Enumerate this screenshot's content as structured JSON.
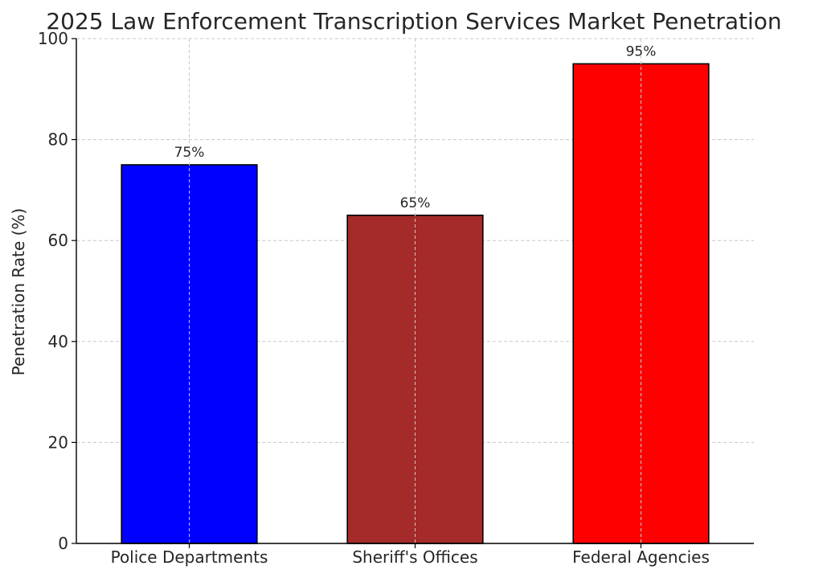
{
  "chart_data": {
    "type": "bar",
    "title": "2025 Law Enforcement Transcription Services Market Penetration",
    "xlabel": "",
    "ylabel": "Penetration Rate (%)",
    "categories": [
      "Police Departments",
      "Sheriff's Offices",
      "Federal Agencies"
    ],
    "values": [
      75,
      65,
      95
    ],
    "value_labels": [
      "75%",
      "65%",
      "95%"
    ],
    "colors": [
      "#0000ff",
      "#a52a2a",
      "#ff0000"
    ],
    "ylim": [
      0,
      100
    ],
    "yticks": [
      0,
      20,
      40,
      60,
      80,
      100
    ],
    "ytick_labels": [
      "0",
      "20",
      "40",
      "60",
      "80",
      "100"
    ],
    "grid": true,
    "grid_style": "dashed"
  }
}
